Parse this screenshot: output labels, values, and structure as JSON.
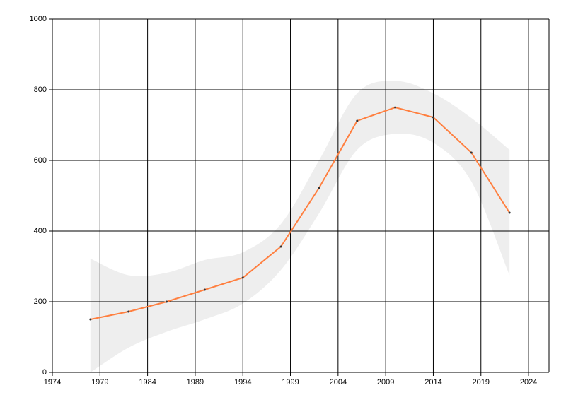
{
  "chart_data": {
    "type": "line",
    "x": [
      1978,
      1982,
      1986,
      1990,
      1994,
      1998,
      2002,
      2006,
      2010,
      2014,
      2018,
      2022
    ],
    "series": [
      {
        "color": "#ff7f3f",
        "values": [
          150,
          172,
          200,
          234,
          268,
          356,
          522,
          712,
          750,
          722,
          622,
          452
        ]
      }
    ],
    "band": {
      "color": "#eeeeee",
      "upper": [
        322,
        275,
        282,
        318,
        340,
        420,
        600,
        790,
        825,
        790,
        720,
        630
      ],
      "lower": [
        0,
        70,
        115,
        150,
        195,
        290,
        450,
        630,
        675,
        650,
        540,
        275
      ]
    },
    "xlim": [
      1974,
      2026
    ],
    "xticks": [
      1974,
      1979,
      1984,
      1989,
      1994,
      1999,
      2004,
      2009,
      2014,
      2019,
      2024
    ],
    "ylim": [
      0,
      1000
    ],
    "yticks": [
      0,
      200,
      400,
      600,
      800,
      1000
    ],
    "grid": true
  }
}
